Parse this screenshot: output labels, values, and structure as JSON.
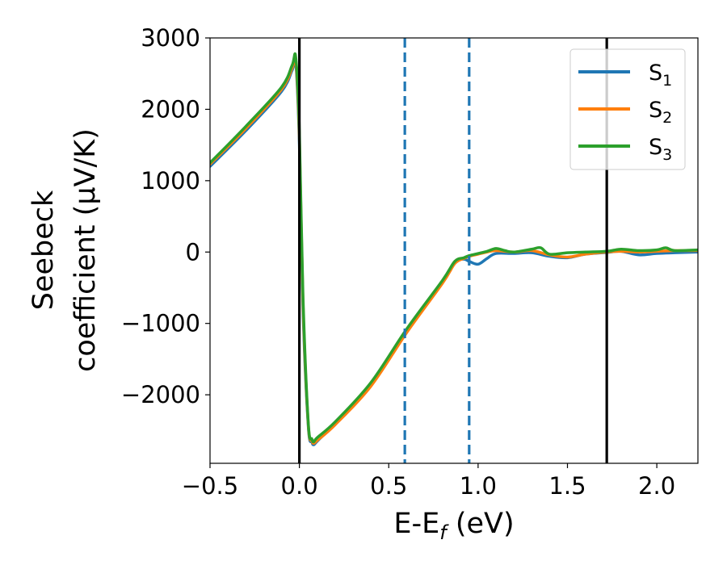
{
  "chart_data": {
    "type": "line",
    "xlabel": "E-E_f (eV)",
    "xlabel_parts": {
      "main": "E-E",
      "sub": "f",
      "tail": " (eV)"
    },
    "ylabel": "Seebeck coefficient (μV/K)",
    "ylabel_lines": [
      "Seebeck",
      "coefficient  (μV/K)"
    ],
    "xlim": [
      -0.5,
      2.23
    ],
    "ylim": [
      -2960,
      3000
    ],
    "xticks": [
      -0.5,
      0.0,
      0.5,
      1.0,
      1.5,
      2.0
    ],
    "xtick_labels": [
      "−0.5",
      "0.0",
      "0.5",
      "1.0",
      "1.5",
      "2.0"
    ],
    "yticks": [
      -2000,
      -1000,
      0,
      1000,
      2000,
      3000
    ],
    "ytick_labels": [
      "−2000",
      "−1000",
      "0",
      "1000",
      "2000",
      "3000"
    ],
    "grid": false,
    "legend_position": "top-right",
    "vertical_lines": [
      {
        "x": 0.0,
        "style": "solid",
        "color": "#000000"
      },
      {
        "x": 1.72,
        "style": "solid",
        "color": "#000000"
      },
      {
        "x": 0.59,
        "style": "dashed",
        "color": "#1f77b4"
      },
      {
        "x": 0.95,
        "style": "dashed",
        "color": "#1f77b4"
      }
    ],
    "series": [
      {
        "name": "S_1",
        "label_main": "S",
        "label_sub": "1",
        "color": "#1f77b4",
        "x": [
          -0.5,
          -0.3,
          -0.1,
          -0.04,
          -0.02,
          0.0,
          0.02,
          0.05,
          0.07,
          0.08,
          0.1,
          0.2,
          0.4,
          0.6,
          0.8,
          0.87,
          0.92,
          0.95,
          1.0,
          1.05,
          1.1,
          1.2,
          1.3,
          1.4,
          1.5,
          1.6,
          1.72,
          1.8,
          1.9,
          2.0,
          2.1,
          2.23
        ],
        "y": [
          1200,
          1700,
          2250,
          2550,
          2640,
          1500,
          -800,
          -2450,
          -2660,
          -2700,
          -2650,
          -2400,
          -1850,
          -1100,
          -420,
          -140,
          -100,
          -130,
          -170,
          -90,
          -20,
          -20,
          -10,
          -60,
          -80,
          -30,
          -5,
          10,
          -40,
          -20,
          -10,
          0
        ]
      },
      {
        "name": "S_2",
        "label_main": "S",
        "label_sub": "2",
        "color": "#ff7f0e",
        "x": [
          -0.5,
          -0.3,
          -0.1,
          -0.04,
          -0.02,
          0.0,
          0.02,
          0.05,
          0.07,
          0.08,
          0.1,
          0.2,
          0.4,
          0.6,
          0.8,
          0.87,
          0.92,
          0.95,
          1.0,
          1.05,
          1.1,
          1.2,
          1.3,
          1.4,
          1.5,
          1.6,
          1.72,
          1.8,
          1.9,
          2.0,
          2.1,
          2.23
        ],
        "y": [
          1230,
          1730,
          2280,
          2580,
          2680,
          1600,
          -700,
          -2420,
          -2640,
          -2680,
          -2640,
          -2420,
          -1880,
          -1130,
          -440,
          -160,
          -90,
          -60,
          -30,
          0,
          20,
          0,
          20,
          -40,
          -70,
          -30,
          0,
          10,
          0,
          10,
          20,
          20
        ]
      },
      {
        "name": "S_3",
        "label_main": "S",
        "label_sub": "3",
        "color": "#2ca02c",
        "x": [
          -0.5,
          -0.3,
          -0.1,
          -0.04,
          -0.02,
          0.0,
          0.02,
          0.05,
          0.07,
          0.08,
          0.1,
          0.2,
          0.4,
          0.6,
          0.8,
          0.87,
          0.92,
          0.95,
          1.0,
          1.05,
          1.1,
          1.15,
          1.2,
          1.3,
          1.35,
          1.4,
          1.5,
          1.6,
          1.72,
          1.8,
          1.9,
          2.0,
          2.05,
          2.1,
          2.23
        ],
        "y": [
          1250,
          1760,
          2310,
          2620,
          2720,
          1700,
          -600,
          -2400,
          -2620,
          -2660,
          -2600,
          -2380,
          -1830,
          -1080,
          -400,
          -130,
          -80,
          -50,
          -20,
          10,
          50,
          20,
          0,
          40,
          60,
          -30,
          -10,
          0,
          10,
          40,
          20,
          30,
          60,
          20,
          30
        ]
      }
    ]
  }
}
